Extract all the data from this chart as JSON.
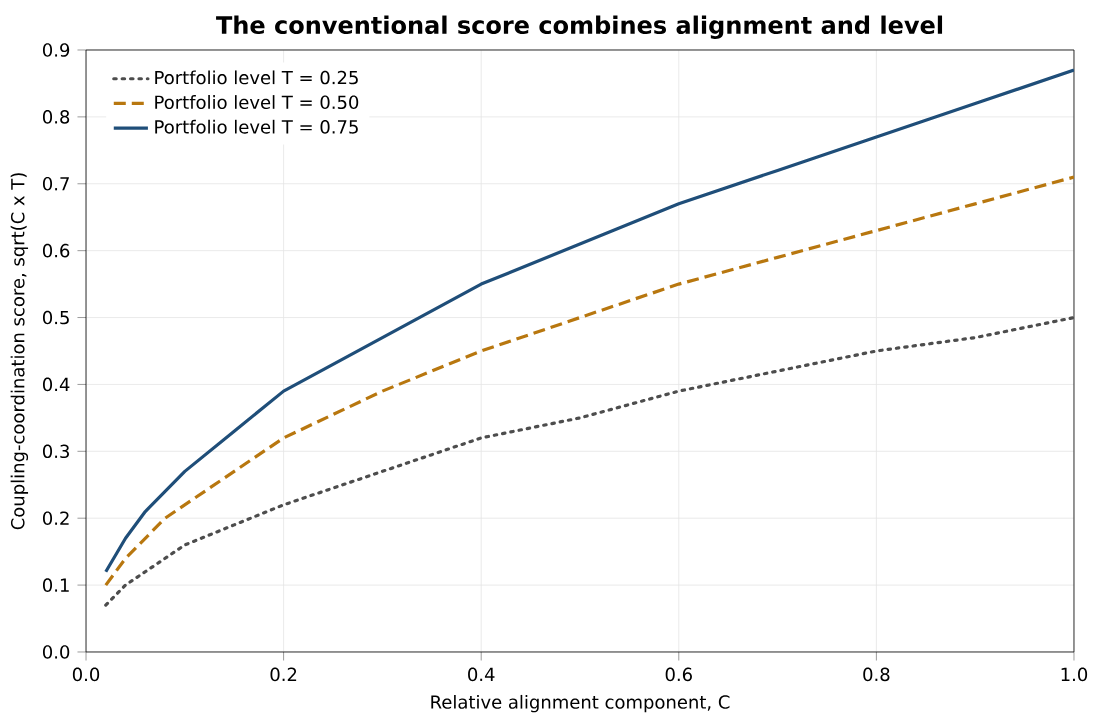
{
  "chart_data": {
    "type": "line",
    "title": "The conventional score combines alignment and level",
    "xlabel": "Relative alignment component, C",
    "ylabel": "Coupling-coordination score, sqrt(C x T)",
    "x": [
      0.02,
      0.04,
      0.06,
      0.08,
      0.1,
      0.15,
      0.2,
      0.3,
      0.4,
      0.5,
      0.6,
      0.7,
      0.8,
      0.9,
      1.0
    ],
    "series": [
      {
        "name": "Portfolio level T = 0.25",
        "color": "#4d4d4d",
        "line_style": "dotted",
        "values": [
          0.07,
          0.1,
          0.12,
          0.14,
          0.16,
          0.19,
          0.22,
          0.27,
          0.32,
          0.35,
          0.39,
          0.42,
          0.45,
          0.47,
          0.5
        ]
      },
      {
        "name": "Portfolio level T = 0.50",
        "color": "#b8770f",
        "line_style": "dashed",
        "values": [
          0.1,
          0.14,
          0.17,
          0.2,
          0.22,
          0.27,
          0.32,
          0.39,
          0.45,
          0.5,
          0.55,
          0.59,
          0.63,
          0.67,
          0.71
        ]
      },
      {
        "name": "Portfolio level T = 0.75",
        "color": "#1f4e79",
        "line_style": "solid",
        "values": [
          0.12,
          0.17,
          0.21,
          0.24,
          0.27,
          0.33,
          0.39,
          0.47,
          0.55,
          0.61,
          0.67,
          0.72,
          0.77,
          0.82,
          0.87
        ]
      }
    ],
    "xlim": [
      0,
      1.0
    ],
    "ylim": [
      0,
      0.9
    ],
    "xticks": [
      {
        "value": 0,
        "label": "0.0"
      },
      0.2,
      0.4,
      0.6,
      0.8,
      {
        "value": 1.0,
        "label": "1.0"
      }
    ],
    "yticks": [
      {
        "value": 0,
        "label": "0.0"
      },
      0.1,
      0.2,
      0.3,
      0.4,
      0.5,
      0.6,
      0.7,
      0.8,
      0.9
    ],
    "grid": true,
    "legend": "top left"
  }
}
